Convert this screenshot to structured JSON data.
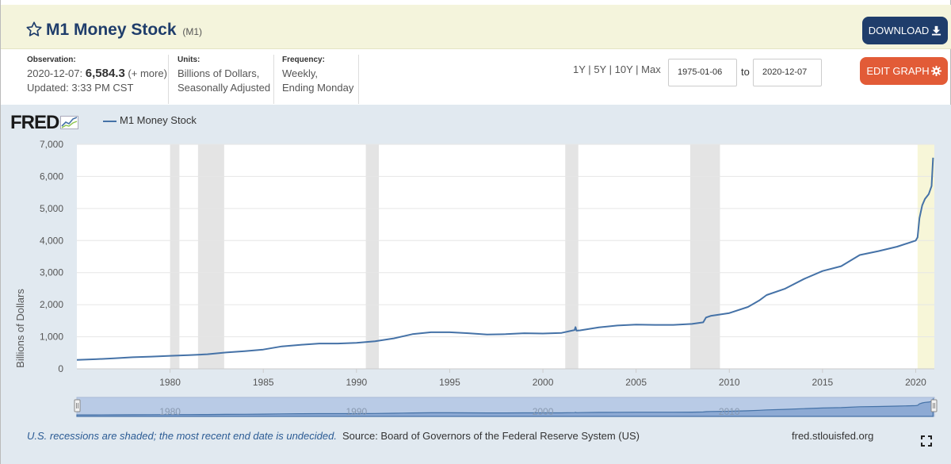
{
  "header": {
    "title": "M1 Money Stock",
    "series_code": "(M1)",
    "download_label": "DOWNLOAD"
  },
  "meta": {
    "observation_label": "Observation:",
    "observation_date": "2020-12-07:",
    "observation_value": "6,584.3",
    "more_link": "(+ more)",
    "updated": "Updated: 3:33 PM CST",
    "units_label": "Units:",
    "units_line1": "Billions of Dollars,",
    "units_line2": "Seasonally Adjusted",
    "frequency_label": "Frequency:",
    "frequency_line1": "Weekly,",
    "frequency_line2": "Ending Monday"
  },
  "controls": {
    "range_1y": "1Y",
    "range_5y": "5Y",
    "range_10y": "10Y",
    "range_max": "Max",
    "separator": "|",
    "start_date": "1975-01-06",
    "to_label": "to",
    "end_date": "2020-12-07",
    "edit_label": "EDIT GRAPH"
  },
  "colors": {
    "series": "#4572a7",
    "recession": "#e4e4e4",
    "undecided": "#f7f6d8",
    "download_btn": "#1f3d6b",
    "edit_btn": "#e25b37"
  },
  "chart_data": {
    "type": "line",
    "brand": "FRED",
    "title": "M1 Money Stock",
    "xlabel": "",
    "ylabel": "Billions of Dollars",
    "xlim": [
      1975.0,
      2021.0
    ],
    "ylim": [
      0,
      7000
    ],
    "yticks": [
      0,
      1000,
      2000,
      3000,
      4000,
      5000,
      6000,
      7000
    ],
    "ytick_labels": [
      "0",
      "1,000",
      "2,000",
      "3,000",
      "4,000",
      "5,000",
      "6,000",
      "7,000"
    ],
    "xticks": [
      1980,
      1985,
      1990,
      1995,
      2000,
      2005,
      2010,
      2015,
      2020
    ],
    "xtick_labels": [
      "1980",
      "1985",
      "1990",
      "1995",
      "2000",
      "2005",
      "2010",
      "2015",
      "2020"
    ],
    "navigator_labels": [
      "1980",
      "1990",
      "2000",
      "2010"
    ],
    "navigator_ticks": [
      1980,
      1990,
      2000,
      2010
    ],
    "recessions": [
      [
        1980.0,
        1980.5
      ],
      [
        1981.5,
        1982.9
      ],
      [
        1990.5,
        1991.2
      ],
      [
        2001.2,
        2001.9
      ],
      [
        2007.9,
        2009.5
      ]
    ],
    "undecided_shade": [
      2020.1,
      2021.0
    ],
    "legend": [
      "M1 Money Stock"
    ],
    "series": [
      {
        "name": "M1 Money Stock",
        "x": [
          1975.0,
          1976.0,
          1977.0,
          1978.0,
          1979.0,
          1980.0,
          1981.0,
          1982.0,
          1983.0,
          1984.0,
          1985.0,
          1986.0,
          1987.0,
          1988.0,
          1989.0,
          1990.0,
          1991.0,
          1992.0,
          1993.0,
          1994.0,
          1995.0,
          1996.0,
          1997.0,
          1998.0,
          1999.0,
          2000.0,
          2001.0,
          2001.7,
          2001.75,
          2001.8,
          2002.0,
          2003.0,
          2004.0,
          2005.0,
          2006.0,
          2007.0,
          2008.0,
          2008.6,
          2008.75,
          2009.0,
          2010.0,
          2011.0,
          2011.6,
          2012.0,
          2013.0,
          2014.0,
          2015.0,
          2016.0,
          2017.0,
          2018.0,
          2019.0,
          2020.0,
          2020.1,
          2020.2,
          2020.35,
          2020.5,
          2020.7,
          2020.85,
          2020.93
        ],
        "values": [
          280,
          300,
          330,
          360,
          380,
          405,
          425,
          455,
          510,
          550,
          600,
          700,
          750,
          790,
          790,
          810,
          860,
          950,
          1080,
          1140,
          1140,
          1110,
          1070,
          1080,
          1110,
          1100,
          1120,
          1210,
          1300,
          1190,
          1200,
          1290,
          1350,
          1380,
          1370,
          1370,
          1400,
          1450,
          1600,
          1650,
          1740,
          1930,
          2130,
          2300,
          2500,
          2800,
          3050,
          3200,
          3550,
          3670,
          3810,
          4000,
          4100,
          4700,
          5100,
          5300,
          5450,
          5700,
          6584
        ]
      }
    ]
  },
  "footer": {
    "recession_note": "U.S. recessions are shaded; the most recent end date is undecided.",
    "source": "Source: Board of Governors of the Federal Reserve System (US)",
    "url": "fred.stlouisfed.org"
  }
}
